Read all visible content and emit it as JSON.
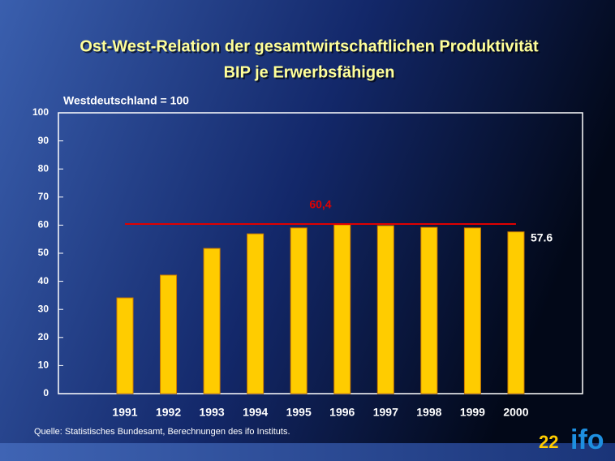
{
  "chart_data": {
    "type": "bar",
    "title": "Ost-West-Relation der gesamtwirtschaftlichen Produktivität",
    "subtitle": "BIP je Erwerbsfähigen",
    "y_axis_label": "Westdeutschland = 100",
    "categories": [
      "1991",
      "1992",
      "1993",
      "1994",
      "1995",
      "1996",
      "1997",
      "1998",
      "1999",
      "2000"
    ],
    "values": [
      34.1,
      42.2,
      51.7,
      56.9,
      59.0,
      60.1,
      59.8,
      59.2,
      59.0,
      57.6
    ],
    "value_labels": [
      null,
      null,
      null,
      null,
      null,
      null,
      null,
      null,
      null,
      "57.6"
    ],
    "color": "#ffcc00",
    "ylim": [
      0,
      100
    ],
    "yticks": [
      0,
      10,
      20,
      30,
      40,
      50,
      60,
      70,
      80,
      90,
      100
    ],
    "reference_line": {
      "value": 60.4,
      "label": "60,4",
      "color": "#e00000"
    },
    "source": "Quelle: Statistisches Bundesamt, Berechnungen des ifo Instituts.",
    "page_number": "22",
    "logo": "ifo"
  }
}
